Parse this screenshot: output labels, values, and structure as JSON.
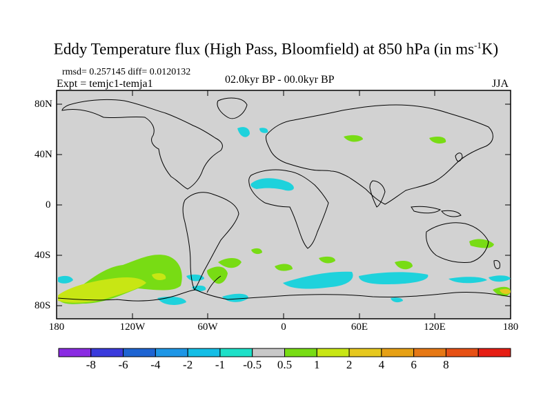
{
  "title": {
    "main": "Eddy Temperature flux (High Pass, Bloomfield) at 850 hPa (in ms",
    "exponent": "-1",
    "unit_end": "K)"
  },
  "stats": {
    "rmsd_diff": "rmsd= 0.257145 diff= 0.0120132",
    "experiment": "Expt = temjc1-temja1",
    "period": "02.0kyr BP - 00.0kyr BP",
    "season": "JJA"
  },
  "axes": {
    "lat_labels": [
      "80N",
      "40N",
      "0",
      "40S",
      "80S"
    ],
    "lon_labels": [
      "180",
      "120W",
      "60W",
      "0",
      "60E",
      "120E",
      "180"
    ]
  },
  "colorbar": {
    "colors": [
      "#8a2be2",
      "#3a3adc",
      "#1e64d2",
      "#1e96e6",
      "#14bee6",
      "#1ee0c8",
      "#c8c8c8",
      "#78dc14",
      "#c8e614",
      "#e6c81e",
      "#e6a014",
      "#e67814",
      "#e65014",
      "#e61e14"
    ],
    "labels": [
      "-8",
      "-6",
      "-4",
      "-2",
      "-1",
      "-0.5",
      "0.5",
      "1",
      "2",
      "4",
      "6",
      "8"
    ]
  },
  "colors": {
    "ocean_land_background": "#d2d2d2",
    "cyan": "#1ed2dc",
    "green": "#78dc14",
    "yellow_green": "#c8e614"
  }
}
